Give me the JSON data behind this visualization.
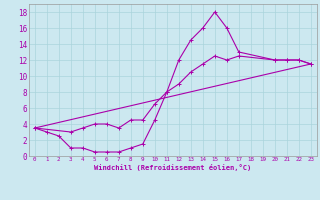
{
  "title": "",
  "xlabel": "Windchill (Refroidissement éolien,°C)",
  "ylabel": "",
  "background_color": "#cce8f0",
  "line_color": "#aa00aa",
  "xlim": [
    -0.5,
    23.5
  ],
  "ylim": [
    0,
    19
  ],
  "xticks": [
    0,
    1,
    2,
    3,
    4,
    5,
    6,
    7,
    8,
    9,
    10,
    11,
    12,
    13,
    14,
    15,
    16,
    17,
    18,
    19,
    20,
    21,
    22,
    23
  ],
  "yticks": [
    0,
    2,
    4,
    6,
    8,
    10,
    12,
    14,
    16,
    18
  ],
  "grid_color": "#aad4dc",
  "series1_x": [
    0,
    1,
    2,
    3,
    4,
    5,
    6,
    7,
    8,
    9,
    10,
    11,
    12,
    13,
    14,
    15,
    16,
    17,
    20,
    21,
    22,
    23
  ],
  "series1_y": [
    3.5,
    3.0,
    2.5,
    1.0,
    1.0,
    0.5,
    0.5,
    0.5,
    1.0,
    1.5,
    4.5,
    8.0,
    12.0,
    14.5,
    16.0,
    18.0,
    16.0,
    13.0,
    12.0,
    12.0,
    12.0,
    11.5
  ],
  "series2_x": [
    0,
    3,
    4,
    5,
    6,
    7,
    8,
    9,
    10,
    11,
    12,
    13,
    14,
    15,
    16,
    17,
    20,
    21,
    22,
    23
  ],
  "series2_y": [
    3.5,
    3.0,
    3.5,
    4.0,
    4.0,
    3.5,
    4.5,
    4.5,
    6.5,
    8.0,
    9.0,
    10.5,
    11.5,
    12.5,
    12.0,
    12.5,
    12.0,
    12.0,
    12.0,
    11.5
  ],
  "series3_x": [
    0,
    23
  ],
  "series3_y": [
    3.5,
    11.5
  ]
}
